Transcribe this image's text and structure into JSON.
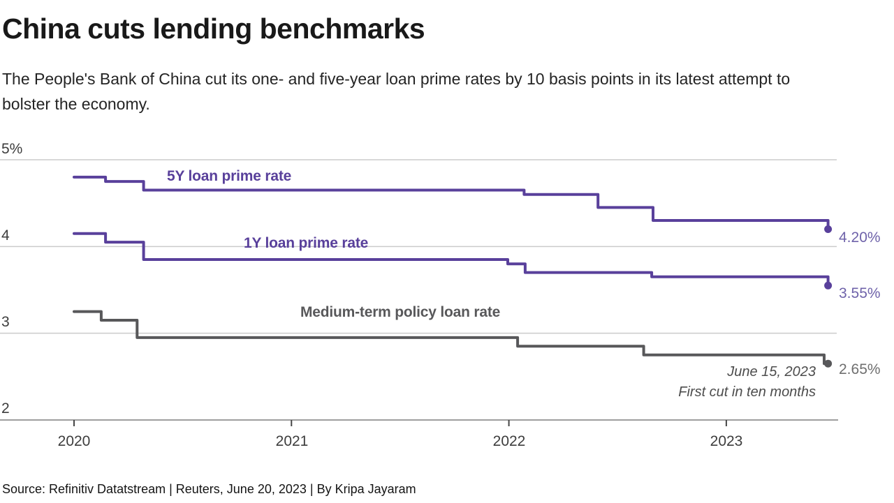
{
  "chart_data": {
    "type": "line",
    "subtype": "step-after",
    "title": "China cuts lending benchmarks",
    "subtitle": [
      "The People's Bank of China cut its one- and five-year loan prime rates by 10 basis points in its latest attempt to",
      "bolster the economy."
    ],
    "x_unit": "decimal_year",
    "xlim": [
      2019.66,
      2023.52
    ],
    "ylim": [
      2,
      5.2
    ],
    "grid": "horizontal",
    "legend_position": "inline-labels",
    "x_ticks": [
      "2020",
      "2021",
      "2022",
      "2023"
    ],
    "y_ticks": [
      {
        "value": 5,
        "label": "5%"
      },
      {
        "value": 4,
        "label": "4"
      },
      {
        "value": 3,
        "label": "3"
      },
      {
        "value": 2,
        "label": "2"
      }
    ],
    "series": [
      {
        "name": "5Y loan prime rate",
        "color": "#59409b",
        "end_label": "4.20%",
        "end_label_color": "#6f63aa",
        "end_value": 4.2,
        "end_x": 2023.468,
        "points": [
          [
            2020.0,
            4.8
          ],
          [
            2020.145,
            4.75
          ],
          [
            2020.32,
            4.65
          ],
          [
            2022.07,
            4.6
          ],
          [
            2022.41,
            4.45
          ],
          [
            2022.663,
            4.3
          ],
          [
            2023.468,
            4.2
          ]
        ]
      },
      {
        "name": "1Y loan prime rate",
        "color": "#59409b",
        "end_label": "3.55%",
        "end_label_color": "#6f63aa",
        "end_value": 3.55,
        "end_x": 2023.468,
        "points": [
          [
            2020.0,
            4.15
          ],
          [
            2020.145,
            4.05
          ],
          [
            2020.32,
            3.85
          ],
          [
            2021.995,
            3.8
          ],
          [
            2022.075,
            3.7
          ],
          [
            2022.657,
            3.65
          ],
          [
            2023.468,
            3.55
          ]
        ]
      },
      {
        "name": "Medium-term policy loan rate",
        "color": "#58585a",
        "end_label": "2.65%",
        "end_label_color": "#6f6f6f",
        "end_value": 2.65,
        "end_x": 2023.468,
        "points": [
          [
            2020.0,
            3.25
          ],
          [
            2020.125,
            3.15
          ],
          [
            2020.29,
            2.95
          ],
          [
            2022.04,
            2.85
          ],
          [
            2022.62,
            2.75
          ],
          [
            2023.45,
            2.65
          ]
        ]
      }
    ],
    "annotation": {
      "lines": [
        "June 15, 2023",
        "First cut in ten months"
      ]
    },
    "source": "Source: Refinitiv Datatstream | Reuters, June 20, 2023 | By Kripa Jayaram"
  }
}
